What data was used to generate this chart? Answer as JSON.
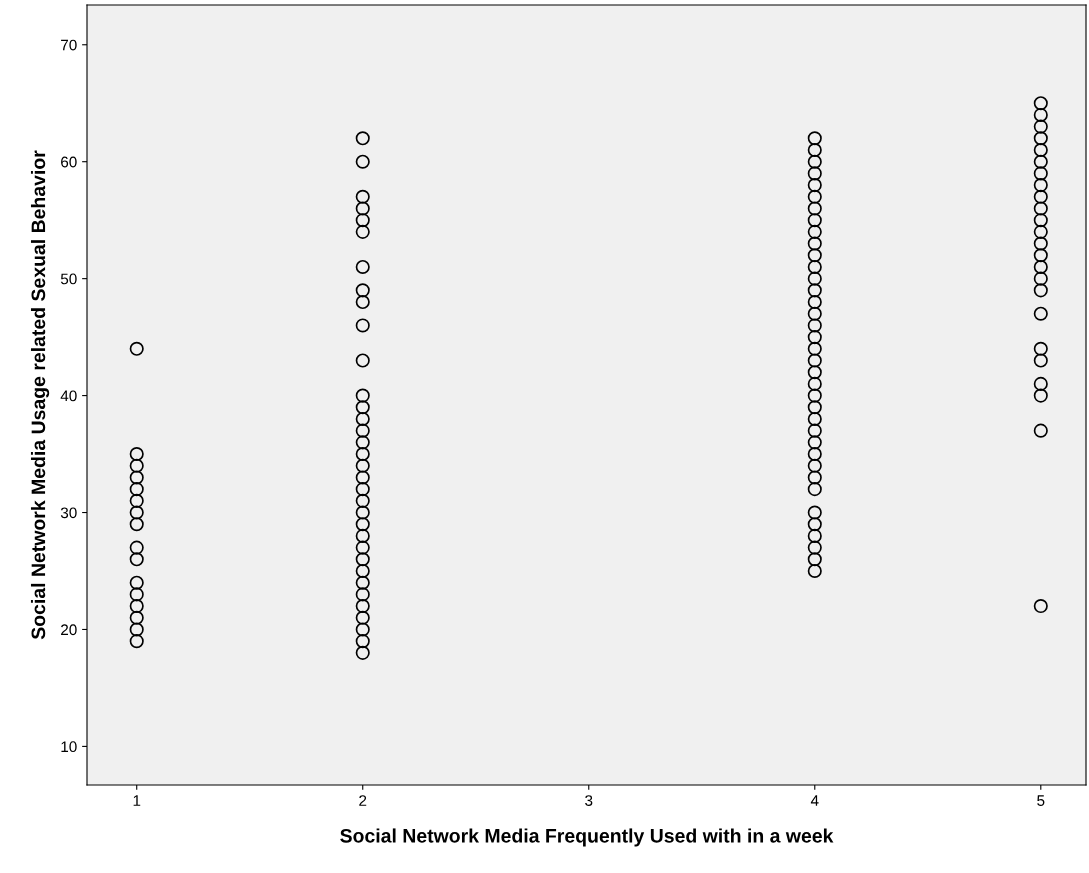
{
  "chart_data": {
    "type": "scatter",
    "xlabel": "Social Network Media Frequently Used with in a week",
    "ylabel": "Social Network Media Usage related Sexual Behavior",
    "x": [
      1,
      1,
      1,
      1,
      1,
      1,
      1,
      1,
      1,
      1,
      1,
      1,
      1,
      1,
      1,
      1,
      2,
      2,
      2,
      2,
      2,
      2,
      2,
      2,
      2,
      2,
      2,
      2,
      2,
      2,
      2,
      2,
      2,
      2,
      2,
      2,
      2,
      2,
      2,
      2,
      2,
      2,
      2,
      2,
      2,
      2,
      2,
      2,
      2,
      2,
      4,
      4,
      4,
      4,
      4,
      4,
      4,
      4,
      4,
      4,
      4,
      4,
      4,
      4,
      4,
      4,
      4,
      4,
      4,
      4,
      4,
      4,
      4,
      4,
      4,
      4,
      4,
      4,
      4,
      4,
      4,
      4,
      4,
      4,
      4,
      4,
      4,
      5,
      5,
      5,
      5,
      5,
      5,
      5,
      5,
      5,
      5,
      5,
      5,
      5,
      5,
      5,
      5,
      5,
      5,
      5,
      5,
      5,
      5,
      5,
      5
    ],
    "values": [
      44,
      35,
      34,
      33,
      32,
      31,
      30,
      29,
      27,
      26,
      24,
      23,
      22,
      21,
      20,
      19,
      62,
      60,
      57,
      56,
      55,
      54,
      51,
      49,
      48,
      46,
      43,
      40,
      39,
      38,
      37,
      36,
      35,
      34,
      33,
      32,
      31,
      30,
      29,
      28,
      27,
      26,
      25,
      24,
      23,
      22,
      21,
      20,
      19,
      18,
      62,
      61,
      60,
      59,
      58,
      57,
      56,
      55,
      54,
      53,
      52,
      51,
      50,
      49,
      48,
      47,
      46,
      45,
      44,
      43,
      42,
      41,
      40,
      39,
      38,
      37,
      36,
      35,
      34,
      33,
      32,
      30,
      29,
      28,
      27,
      26,
      25,
      65,
      64,
      63,
      62,
      61,
      60,
      59,
      58,
      57,
      56,
      55,
      54,
      53,
      52,
      51,
      50,
      49,
      47,
      44,
      43,
      41,
      40,
      37,
      22
    ],
    "color": "#000000",
    "marker": "circle",
    "xlim": [
      0.78,
      5.2
    ],
    "ylim": [
      6.7,
      73.4
    ],
    "xticks": [
      1,
      2,
      3,
      4,
      5
    ],
    "yticks": [
      10,
      20,
      30,
      40,
      50,
      60,
      70
    ],
    "grid": false
  }
}
